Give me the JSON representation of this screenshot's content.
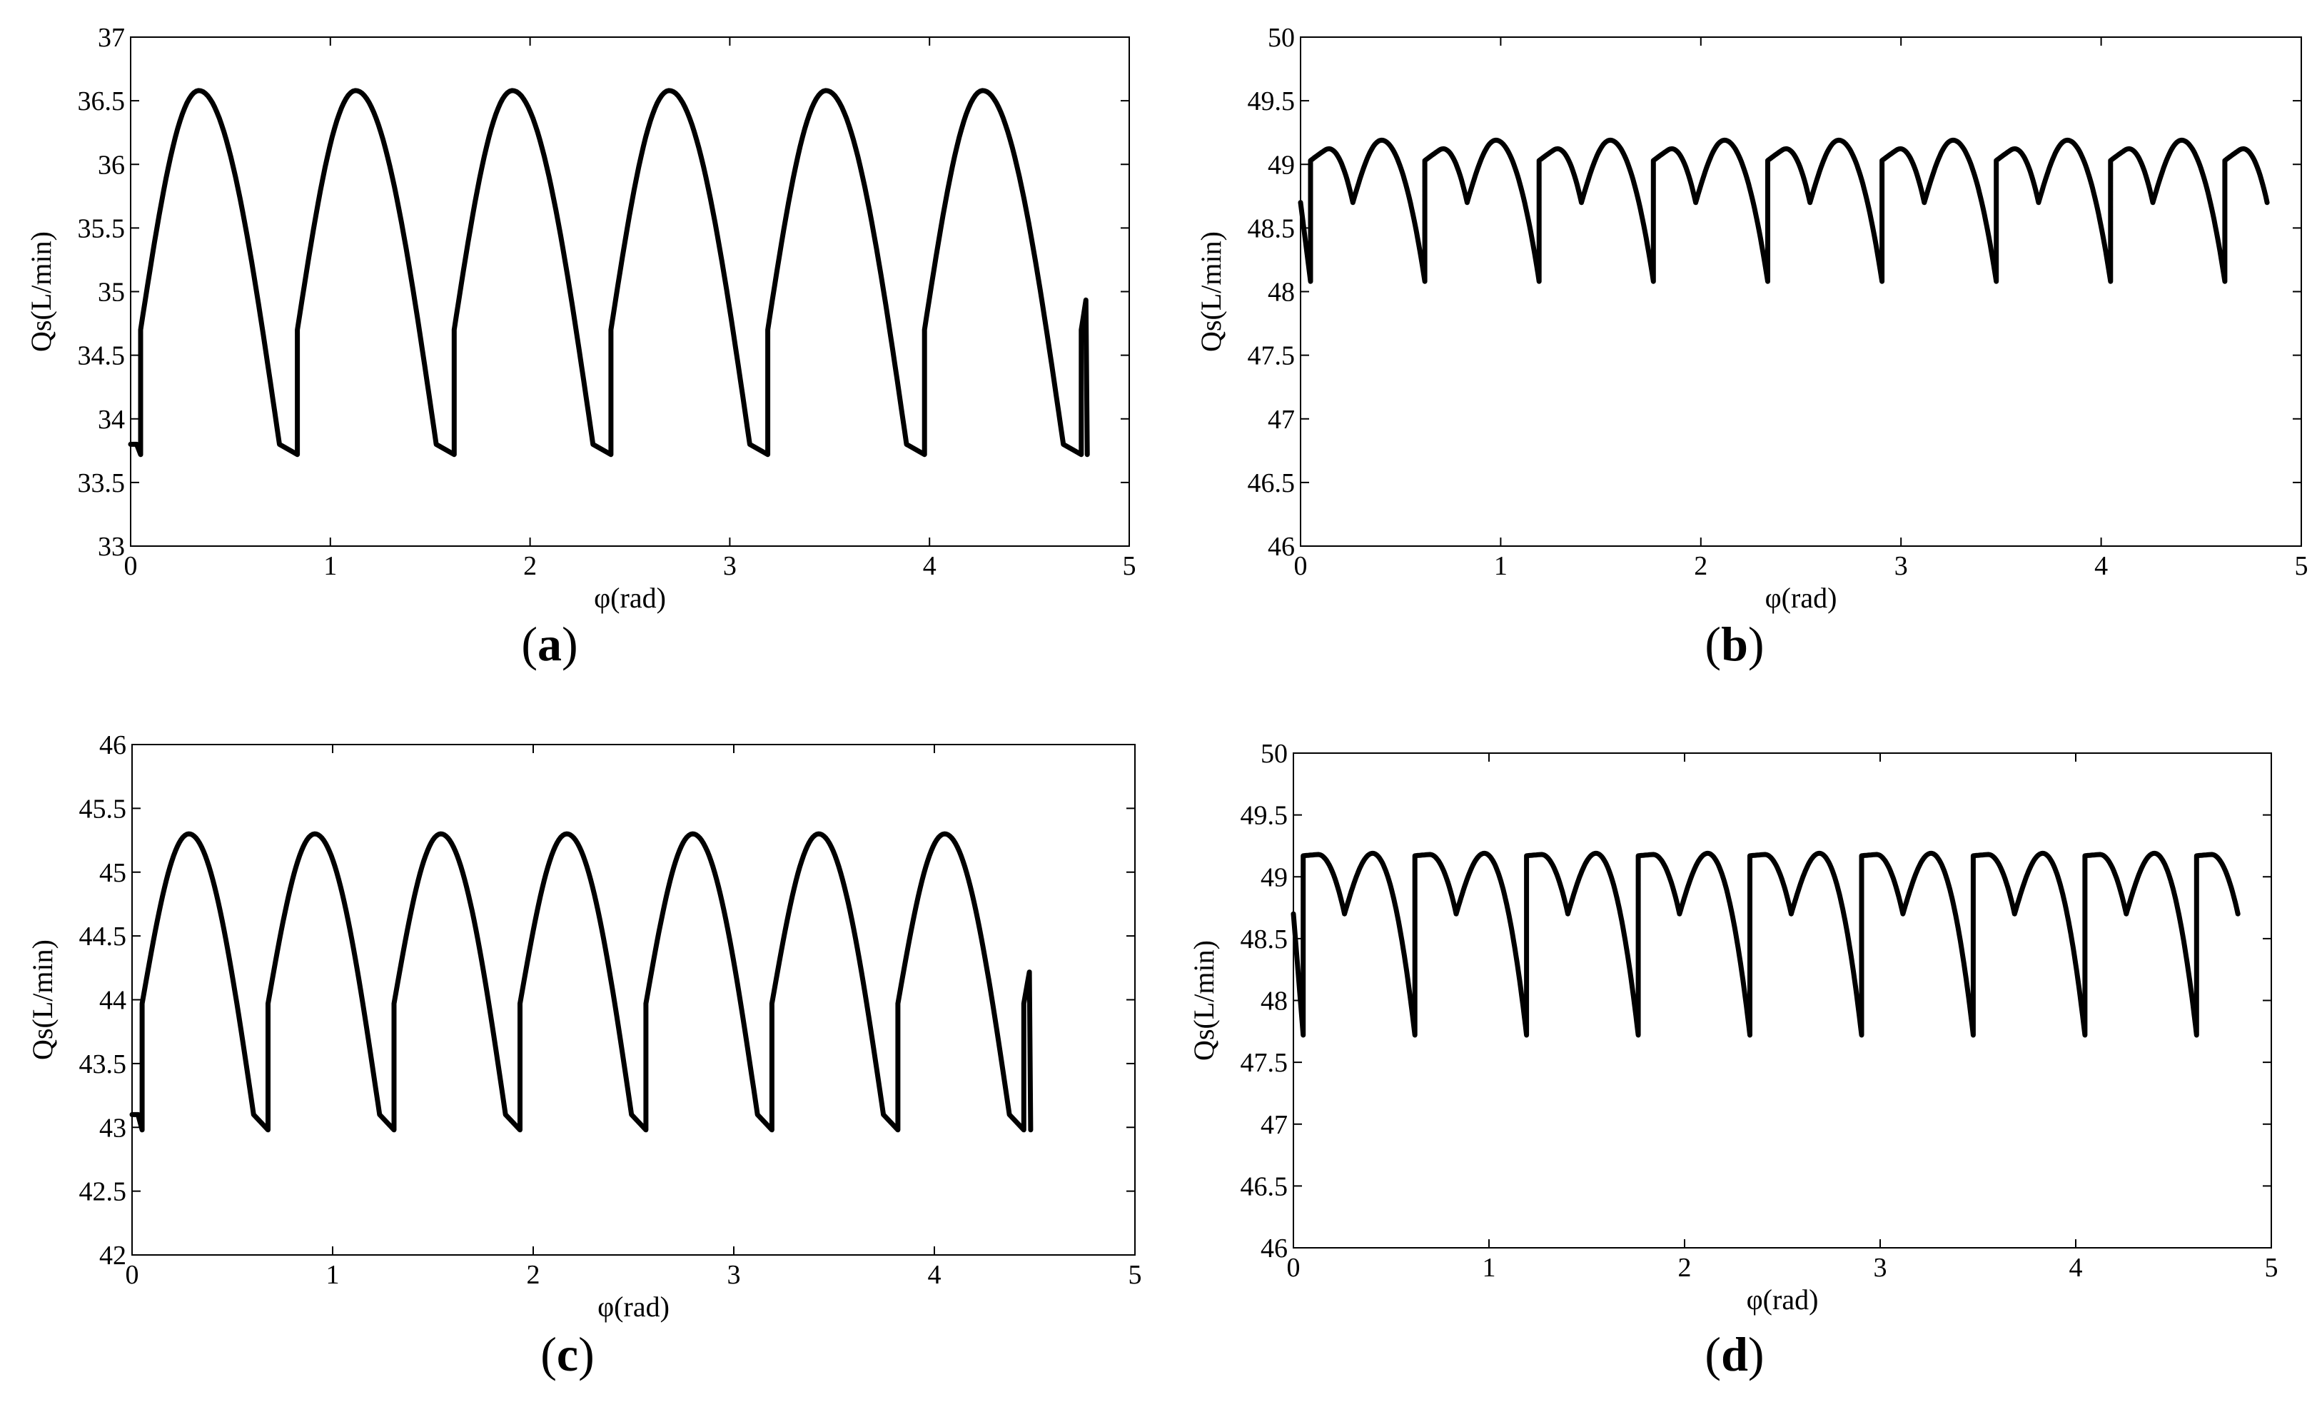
{
  "chart_data": [
    {
      "panel_label": "(a)",
      "type": "line",
      "xlabel": "φ(rad)",
      "ylabel": "Qs(L/min)",
      "xlim": [
        0,
        5
      ],
      "ylim": [
        33,
        37
      ],
      "x_ticks": [
        "0",
        "1",
        "2",
        "3",
        "4",
        "5"
      ],
      "y_ticks": [
        "33",
        "33.5",
        "34",
        "34.5",
        "35",
        "35.5",
        "36",
        "36.5",
        "37"
      ],
      "grid": false,
      "wave": {
        "start_x": 0,
        "end_x": 4.79,
        "period": 0.785,
        "subpeaks_per_period": 1,
        "trough_y": 33.72,
        "jump_top_y": 34.7,
        "peak_y": 36.58,
        "pre_trough_y": 33.8,
        "initial_y": 33.8,
        "final_y": 33.72
      }
    },
    {
      "panel_label": "(b)",
      "type": "line",
      "xlabel": "φ(rad)",
      "ylabel": "Qs(L/min)",
      "xlim": [
        0,
        5
      ],
      "ylim": [
        46,
        50
      ],
      "x_ticks": [
        "0",
        "1",
        "2",
        "3",
        "4",
        "5"
      ],
      "y_ticks": [
        "46",
        "46.5",
        "47",
        "47.5",
        "48",
        "48.5",
        "49",
        "49.5",
        "50"
      ],
      "grid": false,
      "wave": {
        "start_x": 0,
        "end_x": 4.65,
        "period": 0.571,
        "subpeaks_per_period": 2,
        "trough_y": 48.08,
        "jump_top_y": 49.03,
        "peak_y": 49.19,
        "mid_dip_y": 48.7,
        "initial_y": 48.7,
        "final_y": 48.1
      }
    },
    {
      "panel_label": "(c)",
      "type": "line",
      "xlabel": "φ(rad)",
      "ylabel": "Qs(L/min)",
      "xlim": [
        0,
        5
      ],
      "ylim": [
        42,
        46
      ],
      "x_ticks": [
        "0",
        "1",
        "2",
        "3",
        "4",
        "5"
      ],
      "y_ticks": [
        "42",
        "42.5",
        "43",
        "43.5",
        "44",
        "44.5",
        "45",
        "45.5",
        "46"
      ],
      "grid": false,
      "wave": {
        "start_x": 0,
        "end_x": 4.48,
        "period": 0.628,
        "subpeaks_per_period": 1,
        "trough_y": 42.98,
        "jump_top_y": 43.97,
        "peak_y": 45.3,
        "pre_trough_y": 43.1,
        "initial_y": 43.1,
        "final_y": 42.98
      }
    },
    {
      "panel_label": "(d)",
      "type": "line",
      "xlabel": "φ(rad)",
      "ylabel": "Qs(L/min)",
      "xlim": [
        0,
        5
      ],
      "ylim": [
        46,
        50
      ],
      "x_ticks": [
        "0",
        "1",
        "2",
        "3",
        "4",
        "5"
      ],
      "y_ticks": [
        "46",
        "46.5",
        "47",
        "47.5",
        "48",
        "48.5",
        "49",
        "49.5",
        "50"
      ],
      "grid": false,
      "wave": {
        "start_x": 0,
        "end_x": 4.67,
        "period": 0.571,
        "subpeaks_per_period": 2,
        "trough_y": 47.72,
        "jump_top_y": 49.17,
        "peak_y": 49.19,
        "mid_dip_y": 48.7,
        "initial_y": 48.7,
        "final_y": 47.72
      }
    }
  ]
}
